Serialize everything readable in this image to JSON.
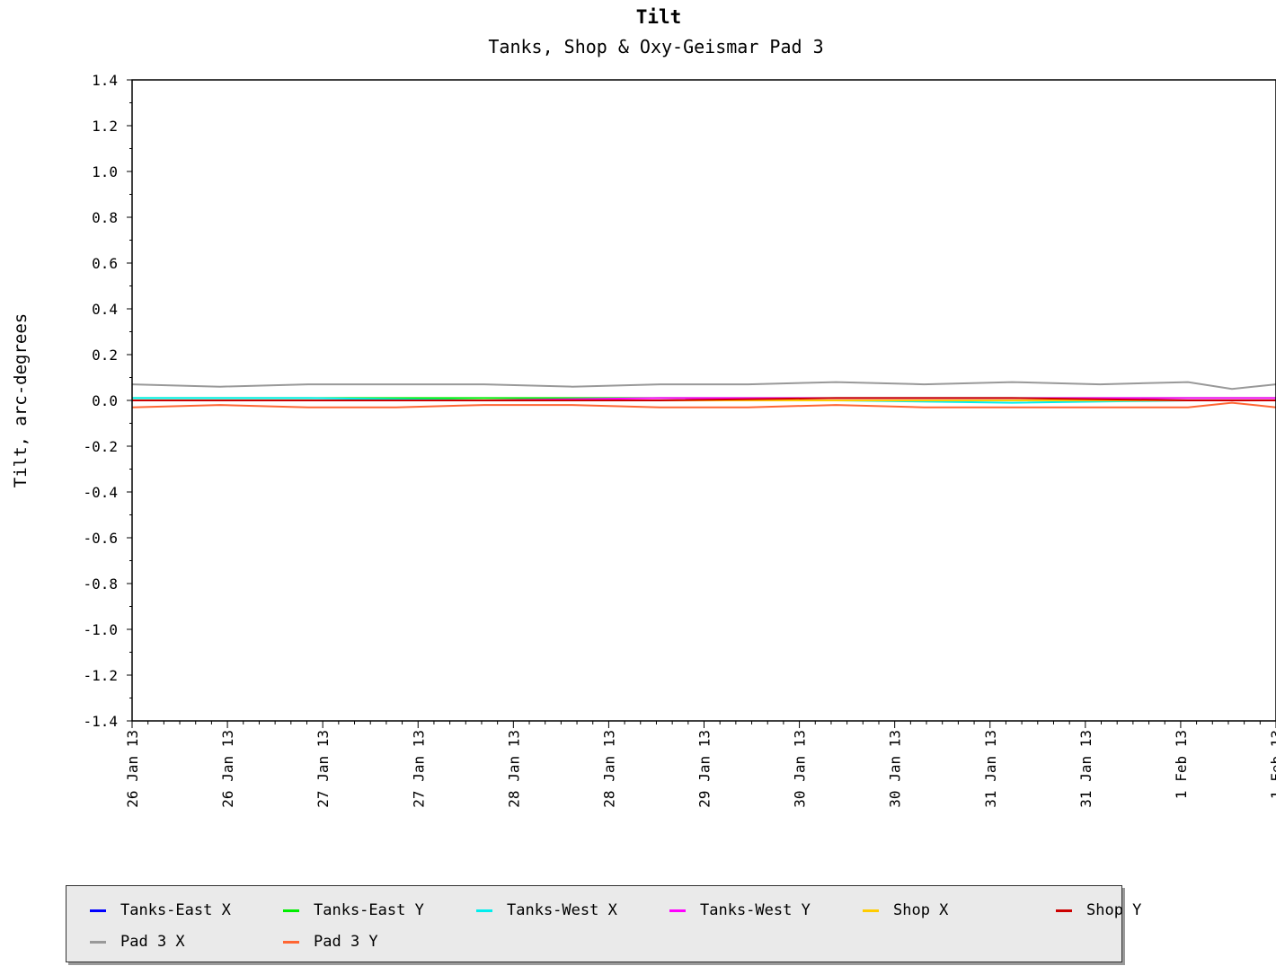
{
  "chart_data": {
    "type": "line",
    "title": "Tilt",
    "subtitle": "Tanks, Shop & Oxy-Geismar Pad 3",
    "xlabel": "",
    "ylabel": "Tilt, arc-degrees",
    "ylim": [
      -1.4,
      1.4
    ],
    "xlim": [
      "2013-01-26T00:00",
      "2013-02-01T12:00"
    ],
    "yticks": [
      "1.4",
      "1.2",
      "1.0",
      "0.8",
      "0.6",
      "0.4",
      "0.2",
      "0.0",
      "-0.2",
      "-0.4",
      "-0.6",
      "-0.8",
      "-1.0",
      "-1.2",
      "-1.4"
    ],
    "xticks": [
      "26 Jan 13",
      "26 Jan 13",
      "27 Jan 13",
      "27 Jan 13",
      "28 Jan 13",
      "28 Jan 13",
      "29 Jan 13",
      "30 Jan 13",
      "30 Jan 13",
      "31 Jan 13",
      "31 Jan 13",
      "1 Feb 13",
      "1 Feb 13"
    ],
    "grid": false,
    "legend_position": "bottom",
    "series": [
      {
        "name": "Tanks-East X",
        "color": "#0000ff",
        "x": [
          "2013-01-26T00:00",
          "2013-01-27T00:00",
          "2013-01-28T00:00",
          "2013-01-29T00:00",
          "2013-01-30T00:00",
          "2013-01-31T00:00",
          "2013-02-01T00:00",
          "2013-02-01T12:00"
        ],
        "y": [
          0.0,
          0.0,
          0.0,
          0.0,
          0.0,
          0.0,
          0.0,
          0.0
        ]
      },
      {
        "name": "Tanks-East Y",
        "color": "#00ee00",
        "x": [
          "2013-01-26T00:00",
          "2013-01-27T00:00",
          "2013-01-28T00:00",
          "2013-01-29T00:00",
          "2013-01-30T00:00",
          "2013-01-31T00:00",
          "2013-02-01T00:00",
          "2013-02-01T12:00"
        ],
        "y": [
          0.01,
          0.01,
          0.01,
          0.01,
          0.01,
          0.01,
          0.01,
          0.01
        ]
      },
      {
        "name": "Tanks-West X",
        "color": "#00eeee",
        "x": [
          "2013-01-26T00:00",
          "2013-01-27T00:00",
          "2013-01-28T00:00",
          "2013-01-29T00:00",
          "2013-01-30T00:00",
          "2013-01-31T00:00",
          "2013-02-01T00:00",
          "2013-02-01T12:00"
        ],
        "y": [
          0.01,
          0.01,
          0.0,
          0.0,
          0.0,
          -0.01,
          0.0,
          0.0
        ]
      },
      {
        "name": "Tanks-West Y",
        "color": "#ff00ff",
        "x": [
          "2013-01-26T00:00",
          "2013-01-27T00:00",
          "2013-01-28T00:00",
          "2013-01-29T00:00",
          "2013-01-30T00:00",
          "2013-01-31T00:00",
          "2013-02-01T00:00",
          "2013-02-01T12:00"
        ],
        "y": [
          0.0,
          0.0,
          0.0,
          0.01,
          0.01,
          0.01,
          0.01,
          0.01
        ]
      },
      {
        "name": "Shop X",
        "color": "#ffcc00",
        "x": [
          "2013-01-26T00:00",
          "2013-01-27T00:00",
          "2013-01-28T00:00",
          "2013-01-29T00:00",
          "2013-01-30T00:00",
          "2013-01-31T00:00",
          "2013-02-01T00:00",
          "2013-02-01T12:00"
        ],
        "y": [
          0.0,
          0.0,
          0.0,
          0.0,
          0.0,
          0.0,
          0.0,
          0.0
        ]
      },
      {
        "name": "Shop Y",
        "color": "#cc0000",
        "x": [
          "2013-01-26T00:00",
          "2013-01-27T00:00",
          "2013-01-28T00:00",
          "2013-01-29T00:00",
          "2013-01-30T00:00",
          "2013-01-31T00:00",
          "2013-02-01T00:00",
          "2013-02-01T12:00"
        ],
        "y": [
          0.0,
          0.0,
          0.0,
          0.0,
          0.01,
          0.01,
          0.0,
          0.0
        ]
      },
      {
        "name": "Pad 3 X",
        "color": "#999999",
        "x": [
          "2013-01-26T00:00",
          "2013-01-26T12:00",
          "2013-01-27T00:00",
          "2013-01-27T12:00",
          "2013-01-28T00:00",
          "2013-01-28T12:00",
          "2013-01-29T00:00",
          "2013-01-29T12:00",
          "2013-01-30T00:00",
          "2013-01-30T12:00",
          "2013-01-31T00:00",
          "2013-01-31T12:00",
          "2013-02-01T00:00",
          "2013-02-01T06:00",
          "2013-02-01T12:00"
        ],
        "y": [
          0.07,
          0.06,
          0.07,
          0.07,
          0.07,
          0.06,
          0.07,
          0.07,
          0.08,
          0.07,
          0.08,
          0.07,
          0.08,
          0.05,
          0.07
        ]
      },
      {
        "name": "Pad 3 Y",
        "color": "#ff6633",
        "x": [
          "2013-01-26T00:00",
          "2013-01-26T12:00",
          "2013-01-27T00:00",
          "2013-01-27T12:00",
          "2013-01-28T00:00",
          "2013-01-28T12:00",
          "2013-01-29T00:00",
          "2013-01-29T12:00",
          "2013-01-30T00:00",
          "2013-01-30T12:00",
          "2013-01-31T00:00",
          "2013-01-31T12:00",
          "2013-02-01T00:00",
          "2013-02-01T06:00",
          "2013-02-01T12:00"
        ],
        "y": [
          -0.03,
          -0.02,
          -0.03,
          -0.03,
          -0.02,
          -0.02,
          -0.03,
          -0.03,
          -0.02,
          -0.03,
          -0.03,
          -0.03,
          -0.03,
          -0.01,
          -0.03
        ]
      }
    ]
  }
}
